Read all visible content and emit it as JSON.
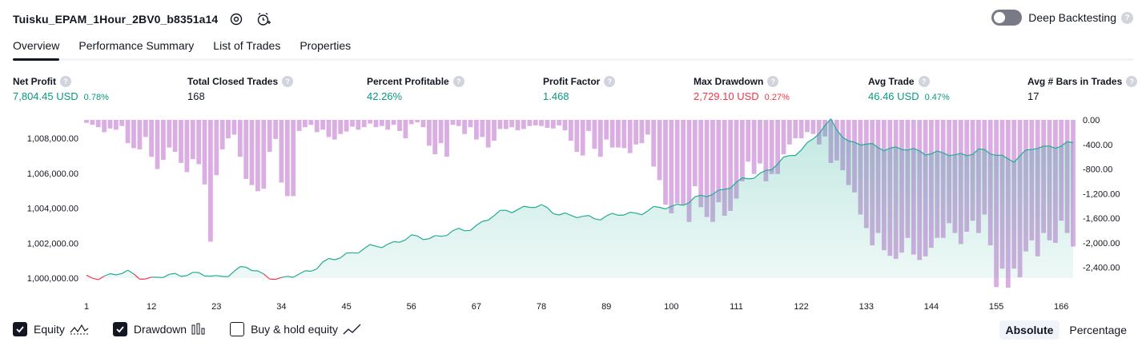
{
  "header": {
    "strategy_name": "Tuisku_EPAM_1Hour_2BV0_b8351a14",
    "deep_backtesting_label": "Deep Backtesting",
    "deep_backtesting_enabled": false,
    "icons": [
      "settings-icon",
      "add-alert-icon",
      "help-icon"
    ]
  },
  "tabs": [
    {
      "label": "Overview",
      "active": true
    },
    {
      "label": "Performance Summary",
      "active": false
    },
    {
      "label": "List of Trades",
      "active": false
    },
    {
      "label": "Properties",
      "active": false
    }
  ],
  "metrics": [
    {
      "label": "Net Profit",
      "value": "7,804.45 USD",
      "pct": "0.78%",
      "color": "green"
    },
    {
      "label": "Total Closed Trades",
      "value": "168",
      "pct": "",
      "color": "dark"
    },
    {
      "label": "Percent Profitable",
      "value": "42.26%",
      "pct": "",
      "color": "green"
    },
    {
      "label": "Profit Factor",
      "value": "1.468",
      "pct": "",
      "color": "green"
    },
    {
      "label": "Max Drawdown",
      "value": "2,729.10 USD",
      "pct": "0.27%",
      "color": "red"
    },
    {
      "label": "Avg Trade",
      "value": "46.46 USD",
      "pct": "0.47%",
      "color": "green"
    },
    {
      "label": "Avg # Bars in Trades",
      "value": "17",
      "pct": "",
      "color": "dark"
    }
  ],
  "colors": {
    "equity_up": "#22ab94",
    "equity_down": "#f23645",
    "equity_fill": "#22ab94",
    "drawdown_bar": "#ce93d8",
    "green": "#089981",
    "red": "#f23645"
  },
  "chart_data": {
    "type": "area",
    "x_ticks": [
      "1",
      "12",
      "23",
      "34",
      "45",
      "56",
      "67",
      "78",
      "89",
      "100",
      "111",
      "122",
      "133",
      "144",
      "155",
      "166"
    ],
    "left_axis": {
      "label": "",
      "ticks": [
        "1,008,000.00",
        "1,006,000.00",
        "1,004,000.00",
        "1,002,000.00",
        "1,000,000.00"
      ],
      "range": [
        999800,
        1009000
      ]
    },
    "right_axis": {
      "label": "",
      "ticks": [
        "0.00",
        "-400.00",
        "-800.00",
        "-1,200.00",
        "-1,600.00",
        "-2,000.00",
        "-2,400.00"
      ],
      "range": [
        -2729.1,
        0
      ]
    },
    "grid": false,
    "series": [
      {
        "name": "Equity",
        "type": "area",
        "x": [
          1,
          8,
          12,
          18,
          23,
          28,
          34,
          39,
          45,
          50,
          56,
          61,
          67,
          72,
          78,
          83,
          89,
          95,
          100,
          105,
          111,
          117,
          122,
          126,
          127,
          130,
          133,
          138,
          144,
          148,
          152,
          155,
          158,
          162,
          166,
          168
        ],
        "y": [
          1000000,
          1000300,
          999950,
          1000300,
          1000050,
          1000600,
          999870,
          1000500,
          1001400,
          1001800,
          1002300,
          1002400,
          1003000,
          1003900,
          1004100,
          1003500,
          1003500,
          1003800,
          1004100,
          1004600,
          1005400,
          1006300,
          1007400,
          1008600,
          1009000,
          1007800,
          1007600,
          1007400,
          1007200,
          1007000,
          1007300,
          1007050,
          1006800,
          1007500,
          1007600,
          1007650
        ]
      },
      {
        "name": "Drawdown",
        "type": "bar",
        "values": [
          -50,
          -80,
          -120,
          -200,
          -140,
          -160,
          -100,
          -380,
          -460,
          -480,
          -280,
          -600,
          -800,
          -650,
          -450,
          -520,
          -700,
          -850,
          -640,
          -720,
          -1050,
          -1980,
          -900,
          -480,
          -300,
          -240,
          -600,
          -960,
          -1060,
          -1160,
          -1120,
          -520,
          -310,
          -1020,
          -1240,
          -1240,
          -180,
          -120,
          -80,
          -200,
          -160,
          -280,
          -320,
          -230,
          -190,
          -110,
          -160,
          -120,
          -60,
          -120,
          -100,
          -160,
          -80,
          -180,
          -300,
          -70,
          -40,
          -120,
          -420,
          -560,
          -380,
          -600,
          -80,
          -100,
          -230,
          -120,
          -320,
          -280,
          -450,
          -340,
          -150,
          -150,
          -120,
          -170,
          -150,
          -100,
          -90,
          -100,
          -130,
          -140,
          -90,
          -170,
          -340,
          -520,
          -580,
          -180,
          -470,
          -600,
          -320,
          -450,
          -450,
          -460,
          -540,
          -400,
          -380,
          -240,
          -760,
          -980,
          -1380,
          -1520,
          -1360,
          -1380,
          -1660,
          -1080,
          -1420,
          -1580,
          -1660,
          -1340,
          -1560,
          -1480,
          -1280,
          -1000,
          -680,
          -880,
          -710,
          -1000,
          -880,
          -880,
          -560,
          -400,
          -300,
          -300,
          -200,
          -230,
          -400,
          -270,
          -210,
          -500,
          -190,
          -80,
          -100,
          -280,
          -190,
          -300,
          -120,
          -80,
          -210,
          -300,
          -260,
          -210,
          -320,
          -40,
          -180,
          -420,
          -100,
          -260,
          -120,
          -180,
          -230,
          -210,
          -160,
          -80,
          -420,
          -160,
          -120,
          -290,
          -250,
          -180,
          -160,
          -120,
          -140,
          -180,
          -140,
          -80,
          -60,
          -40,
          -60,
          -240
        ],
        "values_overlay_region": [
          -700,
          -660,
          -820,
          -1060,
          -1180,
          -1540,
          -1760,
          -2040,
          -1840,
          -2120,
          -2210,
          -2260,
          -2160,
          -1920,
          -2190,
          -2280,
          -2220,
          -2080,
          -1920,
          -1920,
          -1680,
          -1840,
          -2020,
          -1820,
          -1640,
          -1840,
          -1540,
          -2040,
          -2720,
          -2420,
          -2729.1,
          -2420,
          -2560,
          -2140,
          -1960,
          -2220,
          -1840,
          -1960,
          -2000,
          -1640,
          -1840,
          -2060,
          -1400
        ]
      }
    ]
  },
  "legend": [
    {
      "label": "Equity",
      "checked": true,
      "icon": "equity-line-icon"
    },
    {
      "label": "Drawdown",
      "checked": true,
      "icon": "drawdown-bars-icon"
    },
    {
      "label": "Buy & hold equity",
      "checked": false,
      "icon": "buy-hold-line-icon"
    }
  ],
  "modes": [
    {
      "label": "Absolute",
      "active": true
    },
    {
      "label": "Percentage",
      "active": false
    }
  ]
}
